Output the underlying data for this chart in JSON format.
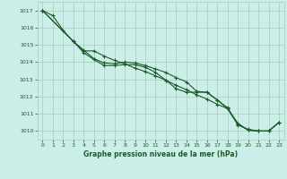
{
  "xlabel": "Graphe pression niveau de la mer (hPa)",
  "xlim": [
    -0.5,
    23.5
  ],
  "ylim": [
    1009.5,
    1017.5
  ],
  "yticks": [
    1010,
    1011,
    1012,
    1013,
    1014,
    1015,
    1016,
    1017
  ],
  "xticks": [
    0,
    1,
    2,
    3,
    4,
    5,
    6,
    7,
    8,
    9,
    10,
    11,
    12,
    13,
    14,
    15,
    16,
    17,
    18,
    19,
    20,
    21,
    22,
    23
  ],
  "bg_color": "#cceee8",
  "grid_color": "#aaccbb",
  "line_color": "#1a5c28",
  "line1_x": [
    0,
    1,
    2,
    3,
    4,
    5,
    6,
    7,
    8,
    9,
    10,
    11,
    12,
    13,
    14,
    15,
    16,
    17,
    18,
    19,
    20,
    21,
    22,
    23
  ],
  "line1_y": [
    1017.0,
    1016.7,
    1015.85,
    1015.2,
    1014.7,
    1014.2,
    1013.95,
    1013.9,
    1014.0,
    1013.95,
    1013.8,
    1013.6,
    1013.4,
    1013.1,
    1012.85,
    1012.3,
    1012.25,
    1011.8,
    1011.35,
    1010.4,
    1010.05,
    1010.0,
    1010.0,
    1010.5
  ],
  "line2_x": [
    0,
    3,
    4,
    5,
    6,
    7,
    8,
    9,
    10,
    11,
    12,
    13,
    14,
    15,
    16,
    17,
    18,
    19,
    20,
    21,
    22,
    23
  ],
  "line2_y": [
    1017.0,
    1015.2,
    1014.65,
    1014.65,
    1014.35,
    1014.1,
    1013.9,
    1013.65,
    1013.45,
    1013.2,
    1012.95,
    1012.65,
    1012.4,
    1012.1,
    1011.85,
    1011.55,
    1011.3,
    1010.35,
    1010.1,
    1010.0,
    1010.0,
    1010.5
  ],
  "line3_x": [
    0,
    3,
    4,
    5,
    6,
    7,
    8,
    9,
    10,
    11,
    12,
    13,
    14,
    15,
    16,
    17,
    18,
    19,
    20,
    21,
    22,
    23
  ],
  "line3_y": [
    1017.0,
    1015.2,
    1014.55,
    1014.15,
    1013.8,
    1013.8,
    1013.85,
    1013.85,
    1013.7,
    1013.4,
    1012.95,
    1012.45,
    1012.25,
    1012.25,
    1012.25,
    1011.8,
    1011.3,
    1010.45,
    1010.05,
    1010.0,
    1010.0,
    1010.5
  ]
}
